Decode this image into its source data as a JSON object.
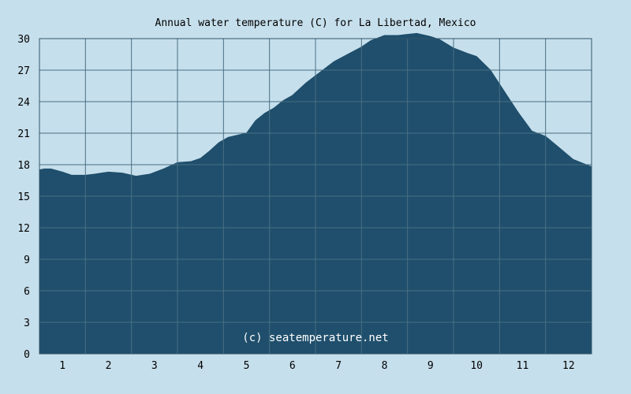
{
  "chart_data": {
    "type": "area",
    "title": "Annual water temperature (C) for La Libertad, Mexico",
    "xlabel": "",
    "ylabel": "",
    "x_ticks": [
      "1",
      "2",
      "3",
      "4",
      "5",
      "6",
      "7",
      "8",
      "9",
      "10",
      "11",
      "12"
    ],
    "y_ticks": [
      "0",
      "3",
      "6",
      "9",
      "12",
      "15",
      "18",
      "21",
      "24",
      "27",
      "30"
    ],
    "xlim": [
      0.5,
      12.5
    ],
    "ylim": [
      0,
      30
    ],
    "grid": true,
    "x": [
      0.5,
      0.6,
      0.75,
      1.0,
      1.2,
      1.5,
      1.7,
      2.0,
      2.3,
      2.6,
      2.9,
      3.2,
      3.5,
      3.8,
      4.0,
      4.2,
      4.4,
      4.6,
      4.8,
      5.0,
      5.2,
      5.4,
      5.6,
      5.8,
      6.0,
      6.3,
      6.6,
      6.9,
      7.2,
      7.5,
      7.7,
      8.0,
      8.3,
      8.5,
      8.7,
      9.0,
      9.2,
      9.5,
      9.8,
      10.0,
      10.3,
      10.6,
      10.9,
      11.2,
      11.5,
      11.8,
      12.1,
      12.5
    ],
    "values": [
      17.5,
      17.6,
      17.6,
      17.3,
      17.0,
      17.0,
      17.1,
      17.3,
      17.2,
      16.9,
      17.1,
      17.6,
      18.2,
      18.3,
      18.6,
      19.3,
      20.1,
      20.6,
      20.8,
      21.0,
      22.2,
      22.9,
      23.4,
      24.1,
      24.6,
      25.8,
      26.8,
      27.8,
      28.5,
      29.2,
      29.8,
      30.3,
      30.3,
      30.4,
      30.5,
      30.2,
      29.9,
      29.1,
      28.6,
      28.3,
      27.0,
      25.0,
      23.0,
      21.2,
      20.7,
      19.6,
      18.5,
      17.8
    ],
    "colors": {
      "fill": "#1f4f6c",
      "grid": "#4a6f85",
      "background": "#c6dfec",
      "plot_border": "#33546a"
    },
    "annotation": "(c) seatemperature.net"
  }
}
